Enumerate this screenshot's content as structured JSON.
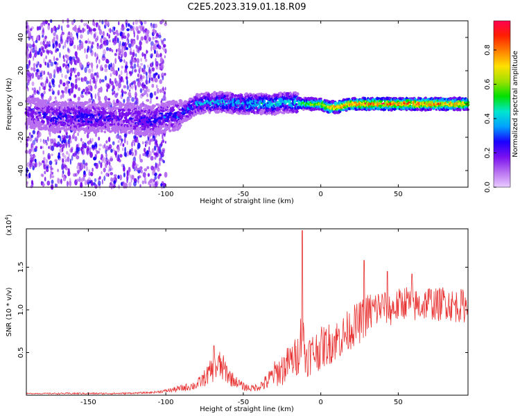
{
  "title": "C2E5.2023.319.01.18.R09",
  "colors": {
    "snr_line": "#e83030",
    "colormap": [
      "#eaccff",
      "#b870f0",
      "#7a10f0",
      "#1a00ff",
      "#00a0ff",
      "#00e6d0",
      "#00e000",
      "#a0e000",
      "#ffe000",
      "#ff8000",
      "#ff2000",
      "#ff0050"
    ]
  },
  "chart_data": [
    {
      "type": "heatmap",
      "xlabel": "Height of straight line (km)",
      "ylabel": "Frequency (Hz)",
      "xlim": [
        -190,
        95
      ],
      "ylim": [
        -50,
        50
      ],
      "xticks": [
        -150,
        -100,
        -50,
        0,
        50
      ],
      "yticks": [
        -40,
        -20,
        0,
        20,
        40
      ],
      "ridge": {
        "x": [
          -190,
          -170,
          -150,
          -130,
          -110,
          -100,
          -90,
          -80,
          -70,
          -60,
          -50,
          -40,
          -30,
          -20,
          -10,
          0,
          5,
          10,
          20,
          40,
          60,
          80,
          95
        ],
        "freq": [
          -5,
          -8,
          -8,
          -8,
          -10,
          -8,
          -6,
          0,
          1,
          1,
          0,
          0,
          0,
          1,
          0,
          0,
          -2,
          -2,
          0,
          0,
          0,
          0,
          0
        ],
        "amplitude": [
          0.2,
          0.3,
          0.3,
          0.25,
          0.3,
          0.3,
          0.35,
          0.4,
          0.45,
          0.45,
          0.45,
          0.5,
          0.5,
          0.5,
          0.6,
          0.7,
          0.8,
          0.85,
          0.9,
          0.95,
          0.95,
          0.9,
          0.85
        ]
      },
      "colorbar": {
        "label": "Normalized spectral amplitude",
        "range": [
          0,
          0.97
        ],
        "ticks": [
          "0.0",
          "0.2",
          "0.4",
          "0.6",
          "0.8"
        ]
      }
    },
    {
      "type": "line",
      "xlabel": "Height of straight line (km)",
      "ylabel": "SNR (10 * v/v)",
      "ymultiplier_label": "(x10",
      "ymultiplier_exp": "4",
      "xlim": [
        -190,
        95
      ],
      "ylim": [
        0,
        1.95
      ],
      "xticks": [
        -150,
        -100,
        -50,
        0,
        50
      ],
      "yticks": [
        0.5,
        1.0,
        1.5
      ],
      "ytick_labels": [
        "0.5",
        "1.0",
        "1.5"
      ],
      "series": [
        {
          "x": [
            -190,
            -160,
            -130,
            -110,
            -100,
            -90,
            -80,
            -75,
            -70,
            -66,
            -62,
            -58,
            -54,
            -50,
            -45,
            -40,
            -35,
            -30,
            -25,
            -20,
            -15,
            -12,
            -10,
            -5,
            0,
            5,
            10,
            15,
            20,
            25,
            30,
            35,
            40,
            45,
            50,
            55,
            60,
            65,
            70,
            75,
            80,
            85,
            90,
            95
          ],
          "y": [
            0.02,
            0.02,
            0.02,
            0.03,
            0.05,
            0.08,
            0.12,
            0.2,
            0.3,
            0.35,
            0.3,
            0.2,
            0.15,
            0.1,
            0.08,
            0.1,
            0.15,
            0.25,
            0.3,
            0.4,
            0.45,
            0.8,
            0.45,
            0.5,
            0.55,
            0.6,
            0.65,
            0.7,
            0.8,
            0.85,
            0.95,
            1.0,
            1.05,
            1.0,
            1.05,
            1.1,
            1.05,
            1.05,
            1.1,
            1.05,
            1.1,
            1.05,
            1.05,
            1.05
          ],
          "noise": [
            0.005,
            0.01,
            0.01,
            0.01,
            0.02,
            0.04,
            0.06,
            0.1,
            0.15,
            0.2,
            0.15,
            0.1,
            0.06,
            0.05,
            0.04,
            0.05,
            0.1,
            0.15,
            0.2,
            0.2,
            0.25,
            0.3,
            0.25,
            0.25,
            0.25,
            0.25,
            0.25,
            0.25,
            0.25,
            0.25,
            0.25,
            0.25,
            0.2,
            0.2,
            0.2,
            0.2,
            0.2,
            0.2,
            0.2,
            0.2,
            0.2,
            0.2,
            0.2,
            0.2
          ],
          "peaks": [
            [
              -69,
              0.58
            ],
            [
              -12,
              1.93
            ],
            [
              28,
              1.58
            ],
            [
              43,
              1.45
            ],
            [
              59,
              1.42
            ]
          ]
        }
      ]
    }
  ]
}
